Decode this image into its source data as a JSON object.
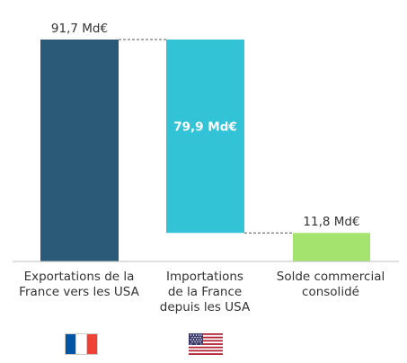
{
  "chart_data": {
    "type": "bar",
    "subtype": "waterfall",
    "categories": [
      "Exportations de la France vers les USA",
      "Importations de la France depuis les USA",
      "Solde commercial consolidé"
    ],
    "category_lines": [
      [
        "Exportations de la",
        "France vers les USA"
      ],
      [
        "Importations",
        "de la France",
        "depuis les USA"
      ],
      [
        "Solde commercial",
        "consolidé"
      ]
    ],
    "values": [
      91.7,
      79.9,
      11.8
    ],
    "bars": [
      {
        "start": 0,
        "end": 91.7
      },
      {
        "start": 11.8,
        "end": 91.7
      },
      {
        "start": 0,
        "end": 11.8
      }
    ],
    "data_labels": [
      "91,7 Md€",
      "79,9 Md€",
      "11,8 Md€"
    ],
    "data_label_position": [
      "above",
      "inside",
      "above"
    ],
    "colors": [
      "#2b5a78",
      "#33c3d6",
      "#a4e36d"
    ],
    "ylim": [
      0,
      91.7
    ],
    "grid": false,
    "connectors": "dashed",
    "flags": [
      "france-flag",
      "usa-flag"
    ]
  }
}
